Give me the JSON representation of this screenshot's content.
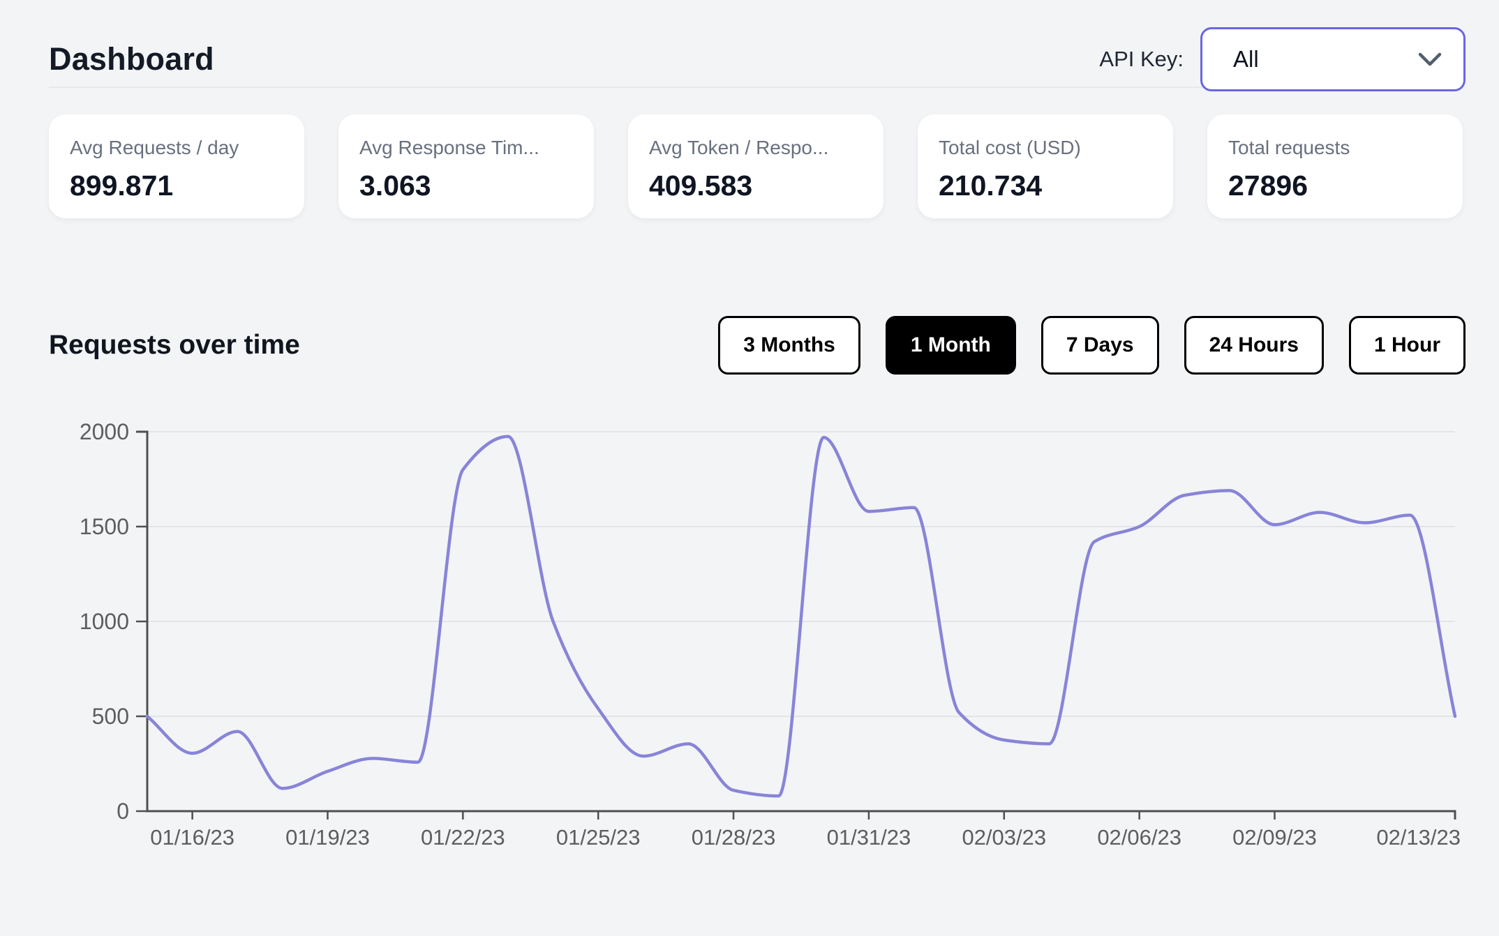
{
  "header": {
    "title": "Dashboard",
    "api_key_label": "API Key:",
    "api_key_value": "All"
  },
  "stats": [
    {
      "label": "Avg Requests / day",
      "value": "899.871"
    },
    {
      "label": "Avg Response Tim...",
      "value": "3.063"
    },
    {
      "label": "Avg Token / Respo...",
      "value": "409.583"
    },
    {
      "label": "Total cost (USD)",
      "value": "210.734"
    },
    {
      "label": "Total requests",
      "value": "27896"
    }
  ],
  "section": {
    "title": "Requests over time"
  },
  "time_buttons": [
    {
      "label": "3 Months",
      "active": false
    },
    {
      "label": "1 Month",
      "active": true
    },
    {
      "label": "7 Days",
      "active": false
    },
    {
      "label": "24 Hours",
      "active": false
    },
    {
      "label": "1 Hour",
      "active": false
    }
  ],
  "chart_data": {
    "type": "line",
    "title": "Requests over time",
    "x": [
      "01/15/23",
      "01/16/23",
      "01/17/23",
      "01/18/23",
      "01/19/23",
      "01/20/23",
      "01/21/23",
      "01/22/23",
      "01/23/23",
      "01/24/23",
      "01/25/23",
      "01/26/23",
      "01/27/23",
      "01/28/23",
      "01/29/23",
      "01/30/23",
      "01/31/23",
      "02/01/23",
      "02/02/23",
      "02/03/23",
      "02/04/23",
      "02/05/23",
      "02/06/23",
      "02/07/23",
      "02/08/23",
      "02/09/23",
      "02/10/23",
      "02/11/23",
      "02/12/23",
      "02/13/23"
    ],
    "series": [
      {
        "name": "Requests",
        "values": [
          500,
          305,
          420,
          120,
          210,
          278,
          258,
          1800,
          1975,
          1000,
          540,
          290,
          355,
          110,
          80,
          1970,
          1580,
          1600,
          520,
          375,
          355,
          1420,
          1500,
          1665,
          1690,
          1510,
          1575,
          1520,
          1560,
          500
        ]
      }
    ],
    "tick_indices": [
      1,
      4,
      7,
      10,
      13,
      16,
      19,
      22,
      25,
      29
    ],
    "tick_labels": [
      "01/16/23",
      "01/19/23",
      "01/22/23",
      "01/25/23",
      "01/28/23",
      "01/31/23",
      "02/03/23",
      "02/06/23",
      "02/09/23",
      "02/13/23"
    ],
    "y_ticks": [
      0,
      500,
      1000,
      1500,
      2000
    ],
    "ylim": [
      0,
      2000
    ],
    "grid": true,
    "legend": "none",
    "line_color": "#8884d8",
    "axis_color": "#4f4f4f",
    "grid_color": "#e3e4e8",
    "tick_text_color": "#5d5d5d"
  },
  "colors": {
    "background": "#f3f4f6",
    "card": "#ffffff",
    "accent_select_border": "#6966e3",
    "button_active_bg": "#000000"
  }
}
